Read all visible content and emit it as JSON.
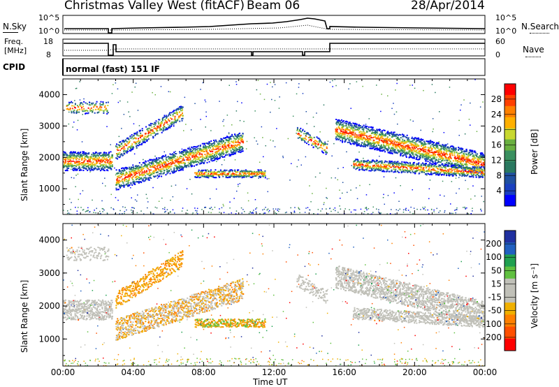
{
  "header": {
    "station": "Christmas Valley West (fitACF)",
    "beam": "Beam 06",
    "date": "28/Apr/2014"
  },
  "noise_panel": {
    "left_label": "N.Sky",
    "right_label": "N.Search",
    "left_ticks": [
      "10^5",
      "10^0"
    ],
    "right_ticks": [
      "10^5",
      "10^0"
    ]
  },
  "freq_panel": {
    "label_line1": "Freq.",
    "label_line2": "[MHz]",
    "left_ticks": [
      "18",
      "8"
    ],
    "right_label": "Nave",
    "right_ticks": [
      "60",
      "0"
    ]
  },
  "cpid_panel": {
    "label": "CPID",
    "mode": "normal (fast) 151 IF"
  },
  "chart_data": [
    {
      "type": "heatmap",
      "ylabel": "Slant Range [km]",
      "xlabel": "Time UT",
      "yticks": [
        "1000",
        "2000",
        "3000",
        "4000"
      ],
      "ylim": [
        180,
        4500
      ],
      "xticks": [
        "00:00",
        "04:00",
        "08:00",
        "12:00",
        "16:00",
        "20:00",
        "00:00"
      ],
      "xlim_hours": [
        0,
        24
      ],
      "colorbar_label": "Power [dB]",
      "colorbar_ticks": [
        "28",
        "24",
        "20",
        "16",
        "12",
        "8",
        "4"
      ],
      "colorbar_colors": [
        "#ff0000",
        "#ff4000",
        "#ff8000",
        "#ffb000",
        "#c8d830",
        "#6ab040",
        "#3a9060",
        "#2a7860",
        "#2050a0",
        "#1a40c0",
        "#0000ff"
      ]
    },
    {
      "type": "heatmap",
      "ylabel": "Slant Range [km]",
      "xlabel": "Time UT",
      "yticks": [
        "1000",
        "2000",
        "3000",
        "4000"
      ],
      "ylim": [
        180,
        4500
      ],
      "xticks": [
        "00:00",
        "04:00",
        "08:00",
        "12:00",
        "16:00",
        "20:00",
        "00:00"
      ],
      "xlim_hours": [
        0,
        24
      ],
      "colorbar_label": "Velocity [m s⁻¹]",
      "colorbar_ticks": [
        "200",
        "100",
        "50",
        "15",
        "-15",
        "-50",
        "-100",
        "-200"
      ],
      "colorbar_colors": [
        "#2030a0",
        "#2060c0",
        "#20a050",
        "#60c040",
        "#c0c0b8",
        "#c0c0b8",
        "#f0b000",
        "#ff8000",
        "#ff5000",
        "#ff0000"
      ]
    }
  ],
  "xaxis": {
    "label": "Time UT",
    "ticks": [
      "00:00",
      "04:00",
      "08:00",
      "12:00",
      "16:00",
      "20:00",
      "00:00"
    ]
  }
}
